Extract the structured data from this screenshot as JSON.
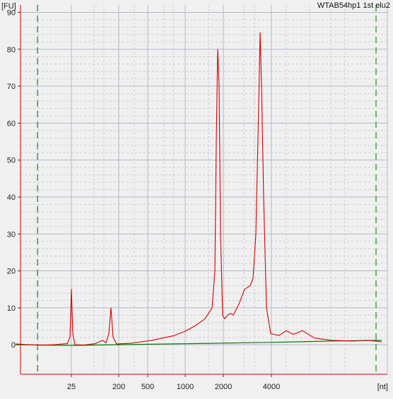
{
  "chart_data": {
    "type": "line",
    "title": "WTAB54hp1 1st elu2",
    "ylabel": "[FU]",
    "xlabel": "[nt]",
    "ylim": [
      -8,
      92
    ],
    "yticks": [
      0,
      10,
      20,
      30,
      40,
      50,
      60,
      70,
      80,
      90
    ],
    "xticks": [
      "25",
      "200",
      "500",
      "1000",
      "2000",
      "4000"
    ],
    "grid": true,
    "colors": {
      "background": "#f0f0f0",
      "frame": "#cc0000",
      "gridline": "#b0b8c8",
      "series_sample": "#d40000",
      "series_baseline": "#008000",
      "marker_line": "#1a9e1a"
    },
    "series": [
      {
        "color": "#d40000",
        "points": [
          [
            22,
            0.2
          ],
          [
            40,
            0.0
          ],
          [
            60,
            -0.1
          ],
          [
            75,
            0.0
          ],
          [
            95,
            0.3
          ],
          [
            99,
            2.0
          ],
          [
            101,
            15.0
          ],
          [
            103,
            3.0
          ],
          [
            106,
            0.0
          ],
          [
            118,
            -0.1
          ],
          [
            135,
            0.3
          ],
          [
            145,
            1.2
          ],
          [
            150,
            0.5
          ],
          [
            154,
            3.0
          ],
          [
            157,
            10.0
          ],
          [
            160,
            2.0
          ],
          [
            165,
            0.2
          ],
          [
            185,
            0.4
          ],
          [
            200,
            0.8
          ],
          [
            215,
            1.2
          ],
          [
            230,
            1.8
          ],
          [
            245,
            2.4
          ],
          [
            260,
            3.5
          ],
          [
            275,
            5.0
          ],
          [
            290,
            7.0
          ],
          [
            300,
            10.0
          ],
          [
            304,
            20.0
          ],
          [
            306,
            55.0
          ],
          [
            308,
            80.0
          ],
          [
            310,
            70.0
          ],
          [
            312,
            30.0
          ],
          [
            315,
            8.0
          ],
          [
            318,
            7.0
          ],
          [
            322,
            8.0
          ],
          [
            326,
            8.5
          ],
          [
            330,
            8.0
          ],
          [
            334,
            9.5
          ],
          [
            338,
            11.0
          ],
          [
            342,
            13.0
          ],
          [
            346,
            15.0
          ],
          [
            350,
            15.5
          ],
          [
            354,
            16.0
          ],
          [
            358,
            18.0
          ],
          [
            362,
            30.0
          ],
          [
            366,
            65.0
          ],
          [
            368,
            84.5
          ],
          [
            370,
            70.0
          ],
          [
            373,
            40.0
          ],
          [
            377,
            10.0
          ],
          [
            383,
            3.0
          ],
          [
            395,
            2.5
          ],
          [
            405,
            3.8
          ],
          [
            415,
            2.8
          ],
          [
            428,
            3.8
          ],
          [
            445,
            1.8
          ],
          [
            470,
            1.2
          ],
          [
            500,
            1.0
          ],
          [
            520,
            1.2
          ],
          [
            540,
            0.8
          ]
        ]
      },
      {
        "color": "#008000",
        "points": [
          [
            22,
            0.0
          ],
          [
            100,
            -0.2
          ],
          [
            200,
            0.1
          ],
          [
            300,
            0.4
          ],
          [
            400,
            0.7
          ],
          [
            470,
            1.0
          ],
          [
            540,
            1.2
          ]
        ]
      }
    ],
    "markers": [
      {
        "label": "lower",
        "x": 53
      },
      {
        "label": "upper",
        "x": 532
      }
    ]
  }
}
